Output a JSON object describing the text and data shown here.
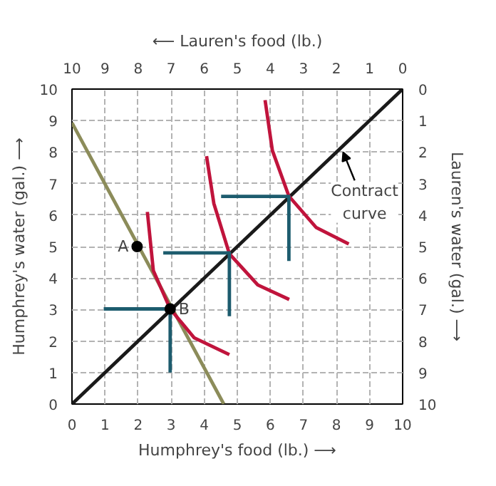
{
  "chart_data": {
    "type": "line",
    "xlabel": "Humphrey's food (lb.) ⟶",
    "ylabel": "Humphrey's water (gal.) ⟶",
    "x2label": "⟵ Lauren's food (lb.)",
    "y2label": "Lauren's water (gal.) ⟶",
    "xlim": [
      0,
      10
    ],
    "xticks": [
      0,
      1,
      2,
      3,
      4,
      5,
      6,
      7,
      8,
      9,
      10
    ],
    "ylim": [
      0,
      10
    ],
    "yticks": [
      0,
      1,
      2,
      3,
      4,
      5,
      6,
      7,
      8,
      9,
      10
    ],
    "x2lim": [
      10,
      0
    ],
    "x2ticks": [
      10,
      9,
      8,
      7,
      6,
      5,
      4,
      3,
      2,
      1,
      0
    ],
    "y2lim": [
      10,
      0
    ],
    "y2ticks": [
      0,
      1,
      2,
      3,
      4,
      5,
      6,
      7,
      8,
      9,
      10
    ],
    "grid": true,
    "line_style": "solid",
    "series": [
      {
        "color": "#8c8c5a",
        "x": [
          0,
          4.59
        ],
        "values": [
          8.93,
          0
        ]
      },
      {
        "color": "#1a1a1a",
        "x": [
          0,
          10
        ],
        "values": [
          0,
          10
        ]
      },
      {
        "color": "#c0143c",
        "x": [
          2.28,
          2.46,
          2.97,
          3.7,
          4.76
        ],
        "values": [
          6.1,
          4.24,
          3.02,
          2.1,
          1.57
        ]
      },
      {
        "color": "#c0143c",
        "x": [
          4.07,
          4.29,
          4.76,
          5.62,
          6.57
        ],
        "values": [
          7.87,
          6.37,
          4.77,
          3.78,
          3.32
        ]
      },
      {
        "color": "#c0143c",
        "x": [
          5.84,
          6.06,
          6.56,
          7.38,
          8.37
        ],
        "values": [
          9.65,
          8.05,
          6.6,
          5.61,
          5.08
        ]
      },
      {
        "color": "#1d5c6e",
        "x": [
          0.96,
          2.97,
          2.97
        ],
        "values": [
          3.02,
          3.02,
          1.0
        ]
      },
      {
        "color": "#1d5c6e",
        "x": [
          2.76,
          4.76,
          4.76
        ],
        "values": [
          4.8,
          4.8,
          2.79
        ]
      },
      {
        "color": "#1d5c6e",
        "x": [
          4.51,
          6.56,
          6.56
        ],
        "values": [
          6.59,
          6.59,
          4.54
        ]
      },
      {
        "type": "scatter",
        "marker": "circle",
        "color": "#000000",
        "x": [
          1.97,
          2.97
        ],
        "values": [
          5.0,
          3.02
        ]
      }
    ],
    "annotations": [
      {
        "text": "A",
        "x": 1.97,
        "y": 5.0
      },
      {
        "text": "B",
        "x": 2.97,
        "y": 3.02
      },
      {
        "text": "Contract\ncurve",
        "x": 8.2,
        "y": 8.1
      }
    ]
  }
}
